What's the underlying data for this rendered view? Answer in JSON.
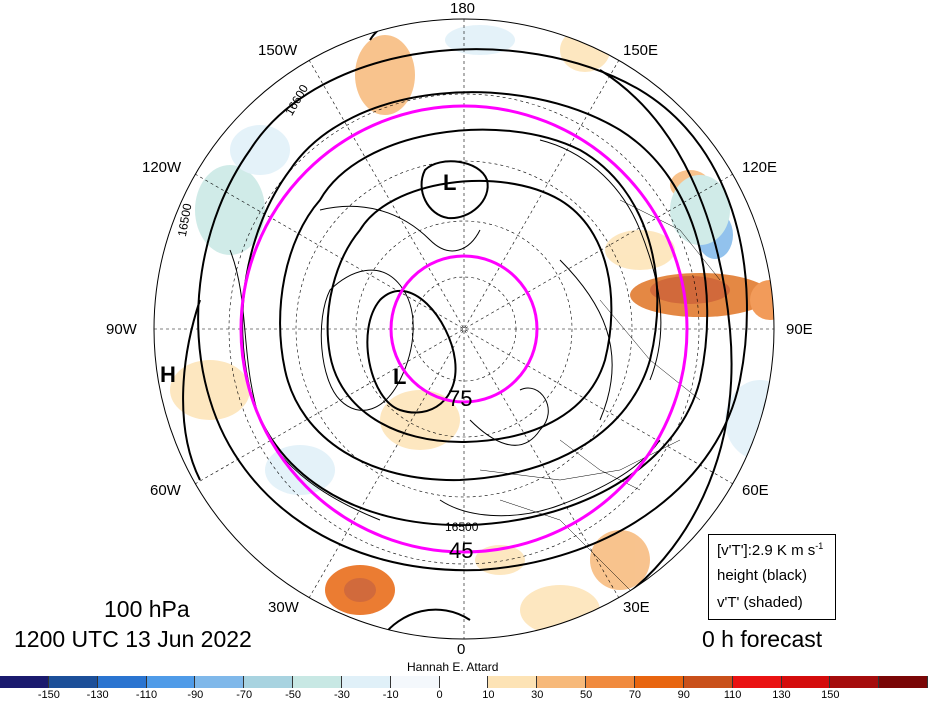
{
  "map": {
    "longitude_labels": [
      "180",
      "150E",
      "120E",
      "90E",
      "60E",
      "30E",
      "0",
      "30W",
      "60W",
      "90W",
      "120W",
      "150W"
    ],
    "latitude_labels": [
      "75",
      "45"
    ],
    "contour_labels": [
      "16600",
      "16500",
      "16500"
    ],
    "pressure_labels": [
      "L",
      "L",
      "H"
    ]
  },
  "title": {
    "level": "100 hPa",
    "time": "1200 UTC 13 Jun 2022",
    "forecast": "0 h forecast",
    "author": "Hannah E. Attard"
  },
  "legend": {
    "line1": "[v'T']:2.9 K m s",
    "line1_sup": "-1",
    "line2": "height (black)",
    "line3": "v'T' (shaded)"
  },
  "colorbar": {
    "ticks": [
      "-150",
      "-130",
      "-110",
      "-90",
      "-70",
      "-50",
      "-30",
      "-10",
      "0",
      "10",
      "30",
      "50",
      "70",
      "90",
      "110",
      "130",
      "150"
    ],
    "colors": [
      "#1a1a6e",
      "#1c4f99",
      "#2a74d0",
      "#4f9be8",
      "#7fb8ea",
      "#a8d3e0",
      "#c8e8e4",
      "#e0f0f8",
      "#f4f8fc",
      "#ffffff",
      "#fde3b5",
      "#f7b97a",
      "#f08a3e",
      "#e8650f",
      "#c9501a",
      "#ea1212",
      "#d40c0c",
      "#a50c0c",
      "#7a0606"
    ]
  }
}
